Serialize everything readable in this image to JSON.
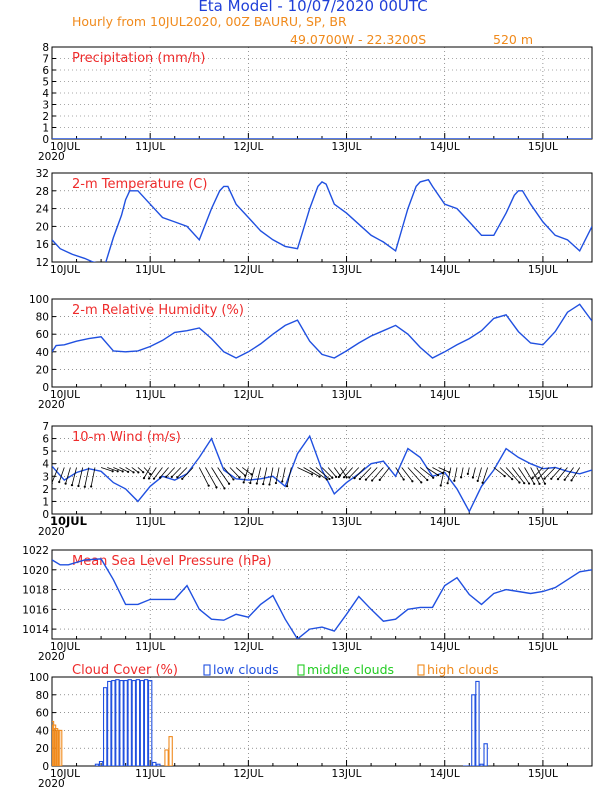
{
  "header": {
    "title": "Eta Model - 10/07/2020 00UTC",
    "subtitle": "Hourly from 10JUL2020, 00Z  BAURU, SP, BR",
    "coords": "49.0700W - 22.3200S",
    "elevation": "520  m"
  },
  "colors": {
    "title": "#1f3fd8",
    "orange": "#f08a1c",
    "red": "#ee2b2b",
    "blue": "#2050e0",
    "green": "#22cc22"
  },
  "day_labels": [
    "10JUL",
    "11JUL",
    "12JUL",
    "13JUL",
    "14JUL",
    "15JUL"
  ],
  "year_label": "2020",
  "chart_data": [
    {
      "id": "precip",
      "type": "line",
      "title": "Precipitation (mm/h)",
      "ylim": [
        0,
        8
      ],
      "yticks": [
        0,
        1,
        2,
        3,
        4,
        5,
        6,
        7,
        8
      ],
      "x_unit": "hours since 10JUL2020 00Z",
      "series": [
        {
          "name": "precipitation",
          "x": [
            0,
            132
          ],
          "values": [
            0,
            0
          ]
        }
      ]
    },
    {
      "id": "temp",
      "type": "line",
      "title": "2-m Temperature (C)",
      "ylim": [
        12,
        32
      ],
      "yticks": [
        12,
        16,
        20,
        24,
        28,
        32
      ],
      "series": [
        {
          "name": "temperature",
          "x": [
            0,
            2,
            5,
            8,
            10,
            13,
            15,
            17,
            18,
            19,
            21,
            24,
            27,
            30,
            33,
            36,
            39,
            41,
            42,
            43,
            45,
            48,
            51,
            54,
            57,
            60,
            63,
            65,
            66,
            67,
            69,
            72,
            75,
            78,
            81,
            84,
            87,
            89,
            90,
            92,
            93,
            96,
            99,
            102,
            105,
            108,
            111,
            113,
            114,
            115,
            117,
            120,
            123,
            126,
            129,
            132
          ],
          "values": [
            17,
            15,
            13.7,
            12.8,
            12,
            11.5,
            17.5,
            22.5,
            26,
            28,
            28,
            25,
            22,
            21,
            20,
            17,
            24,
            28,
            29,
            29,
            25,
            22,
            19,
            17,
            15.5,
            15,
            24,
            29,
            30,
            29.5,
            25,
            23,
            20.5,
            18,
            16.5,
            14.5,
            24,
            29,
            30,
            30.5,
            29,
            25,
            24,
            21,
            18,
            18,
            23,
            27,
            28,
            28,
            25,
            21,
            18,
            17,
            14.5,
            20
          ]
        }
      ]
    },
    {
      "id": "rh",
      "type": "line",
      "title": "2-m Relative Humidity (%)",
      "ylim": [
        0,
        100
      ],
      "yticks": [
        0,
        20,
        40,
        60,
        80,
        100
      ],
      "series": [
        {
          "name": "relative humidity",
          "x": [
            0,
            1,
            3,
            6,
            9,
            12,
            15,
            18,
            21,
            24,
            27,
            30,
            33,
            36,
            39,
            42,
            45,
            48,
            51,
            54,
            57,
            60,
            63,
            66,
            69,
            72,
            75,
            78,
            81,
            84,
            87,
            90,
            93,
            96,
            99,
            102,
            105,
            108,
            111,
            114,
            117,
            120,
            123,
            126,
            129,
            132
          ],
          "values": [
            40,
            47,
            48,
            52,
            55,
            57,
            41,
            40,
            41,
            46,
            53,
            62,
            64,
            67,
            55,
            40,
            33,
            40,
            49,
            60,
            70,
            76,
            52,
            37,
            33,
            41,
            50,
            58,
            64,
            70,
            60,
            45,
            33,
            40,
            48,
            55,
            64,
            78,
            82,
            63,
            50,
            48,
            63,
            85,
            94,
            75
          ]
        }
      ]
    },
    {
      "id": "wind",
      "type": "line",
      "title": "10-m Wind (m/s)",
      "ylim": [
        0,
        7
      ],
      "yticks": [
        0,
        1,
        2,
        3,
        4,
        5,
        6,
        7
      ],
      "series": [
        {
          "name": "wind speed",
          "x": [
            0,
            3,
            6,
            9,
            12,
            15,
            18,
            21,
            24,
            27,
            30,
            33,
            36,
            39,
            42,
            45,
            48,
            51,
            54,
            57,
            60,
            63,
            66,
            69,
            72,
            75,
            78,
            81,
            84,
            87,
            90,
            93,
            96,
            99,
            102,
            105,
            108,
            111,
            114,
            117,
            120,
            123,
            126,
            129,
            132
          ],
          "values": [
            3.8,
            2.7,
            3.3,
            3.6,
            3.4,
            2.5,
            2,
            1,
            2.2,
            3,
            2.7,
            3.2,
            4.5,
            6,
            3.5,
            2.8,
            2.7,
            2.8,
            3,
            2.2,
            4.8,
            6.2,
            3.5,
            1.6,
            2.5,
            3.2,
            4,
            4.2,
            3,
            5.2,
            4.5,
            3,
            3.3,
            2,
            0.2,
            2.2,
            3.5,
            5.2,
            4.5,
            4,
            3.6,
            3.7,
            3.4,
            3.2,
            3.5
          ]
        }
      ]
    },
    {
      "id": "mslp",
      "type": "line",
      "title": "Mean Sea Level Pressure (hPa)",
      "ylim": [
        1013,
        1022
      ],
      "yticks": [
        1014,
        1016,
        1018,
        1020,
        1022
      ],
      "series": [
        {
          "name": "pressure",
          "x": [
            0,
            2,
            4,
            8,
            12,
            15,
            18,
            21,
            24,
            27,
            30,
            33,
            36,
            39,
            42,
            45,
            48,
            51,
            54,
            57,
            60,
            63,
            66,
            69,
            72,
            75,
            78,
            81,
            84,
            87,
            90,
            93,
            96,
            99,
            102,
            105,
            108,
            111,
            114,
            117,
            120,
            123,
            126,
            129,
            132
          ],
          "values": [
            1021,
            1020.5,
            1020.5,
            1021,
            1021.1,
            1019,
            1016.5,
            1016.5,
            1017,
            1017,
            1017,
            1018.4,
            1016,
            1015,
            1014.9,
            1015.5,
            1015.2,
            1016.5,
            1017.4,
            1015,
            1013,
            1014,
            1014.2,
            1013.8,
            1015.5,
            1017.3,
            1016,
            1014.8,
            1015,
            1016,
            1016.2,
            1016.2,
            1018.4,
            1019.2,
            1017.5,
            1016.5,
            1017.6,
            1018,
            1017.8,
            1017.6,
            1017.8,
            1018.2,
            1019,
            1019.8,
            1020
          ]
        }
      ]
    },
    {
      "id": "cloud",
      "type": "bar",
      "title": "Cloud Cover (%)",
      "ylim": [
        0,
        100
      ],
      "yticks": [
        0,
        20,
        40,
        60,
        80,
        100
      ],
      "legend": [
        "low clouds",
        "middle clouds",
        "high clouds"
      ],
      "series": [
        {
          "name": "low clouds",
          "x": [
            11,
            12,
            13,
            14,
            15,
            16,
            17,
            18,
            19,
            20,
            21,
            22,
            23,
            24,
            25,
            26,
            101,
            102,
            103,
            104,
            105,
            106
          ],
          "values": [
            2,
            5,
            88,
            95,
            96,
            97,
            96,
            96,
            97,
            96,
            97,
            96,
            97,
            96,
            4,
            2,
            0,
            0,
            80,
            95,
            2,
            25
          ]
        },
        {
          "name": "middle clouds",
          "x": [],
          "values": []
        },
        {
          "name": "high clouds",
          "x": [
            0,
            0.5,
            1,
            1.5,
            2,
            28,
            29
          ],
          "values": [
            50,
            46,
            42,
            40,
            40,
            18,
            33
          ]
        }
      ]
    }
  ]
}
